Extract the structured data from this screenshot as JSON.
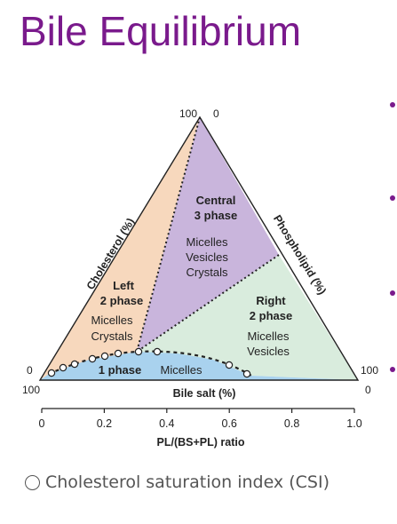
{
  "slide": {
    "title": "Bile Equilibrium"
  },
  "diagram": {
    "colors": {
      "left_region": "#f7d8bd",
      "central_region": "#c9b5dc",
      "right_region": "#d9ecdd",
      "one_phase_region": "#a9d2ee",
      "outline": "#222222"
    },
    "corner_labels": {
      "top_left": "100",
      "top_right": "0",
      "left_upper": "0",
      "left_lower": "100",
      "right_upper": "100",
      "right_lower": "0"
    },
    "side_labels": {
      "cholesterol": "Cholesterol (%)",
      "phospholipid": "Phospholipid (%)",
      "bile_salt": "Bile salt (%)"
    },
    "regions": {
      "central": {
        "title_line1": "Central",
        "title_line2": "3 phase",
        "line1": "Micelles",
        "line2": "Vesicles",
        "line3": "Crystals"
      },
      "left": {
        "title_line1": "Left",
        "title_line2": "2 phase",
        "line1": "Micelles",
        "line2": "Crystals"
      },
      "right": {
        "title_line1": "Right",
        "title_line2": "2 phase",
        "line1": "Micelles",
        "line2": "Vesicles"
      },
      "one_phase": {
        "title": "1 phase",
        "label": "Micelles"
      }
    },
    "ratio_axis": {
      "label": "PL/(BS+PL) ratio",
      "ticks": [
        "0",
        "0.2",
        "0.4",
        "0.6",
        "0.8",
        "1.0"
      ]
    }
  },
  "footer": {
    "csi_label": "Cholesterol saturation index (CSI)"
  }
}
